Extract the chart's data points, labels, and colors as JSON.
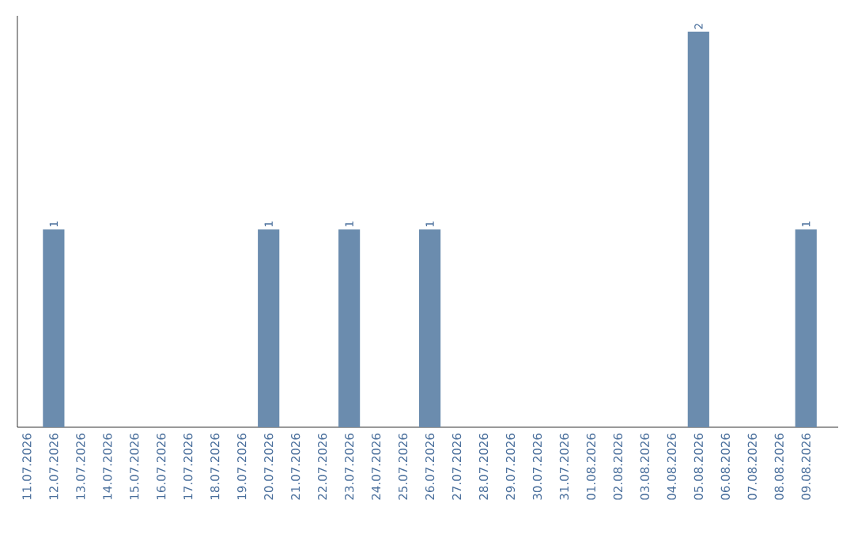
{
  "chart_data": {
    "type": "bar",
    "categories": [
      "11.07.2026",
      "12.07.2026",
      "13.07.2026",
      "14.07.2026",
      "15.07.2026",
      "16.07.2026",
      "17.07.2026",
      "18.07.2026",
      "19.07.2026",
      "20.07.2026",
      "21.07.2026",
      "22.07.2026",
      "23.07.2026",
      "24.07.2026",
      "25.07.2026",
      "26.07.2026",
      "27.07.2026",
      "28.07.2026",
      "29.07.2026",
      "30.07.2026",
      "31.07.2026",
      "01.08.2026",
      "02.08.2026",
      "03.08.2026",
      "04.08.2026",
      "05.08.2026",
      "06.08.2026",
      "07.08.2026",
      "08.08.2026",
      "09.08.2026"
    ],
    "values": [
      0,
      1,
      0,
      0,
      0,
      0,
      0,
      0,
      0,
      1,
      0,
      0,
      1,
      0,
      0,
      1,
      0,
      0,
      0,
      0,
      0,
      0,
      0,
      0,
      0,
      2,
      0,
      0,
      0,
      1
    ],
    "value_labels": [
      null,
      "1",
      null,
      null,
      null,
      null,
      null,
      null,
      null,
      "1",
      null,
      null,
      "1",
      null,
      null,
      "1",
      null,
      null,
      null,
      null,
      null,
      null,
      null,
      null,
      null,
      "2",
      null,
      null,
      null,
      "1"
    ],
    "color": "#6b8cae",
    "ylim": [
      0,
      2.08
    ],
    "tick_labels": "x",
    "grid": false
  }
}
